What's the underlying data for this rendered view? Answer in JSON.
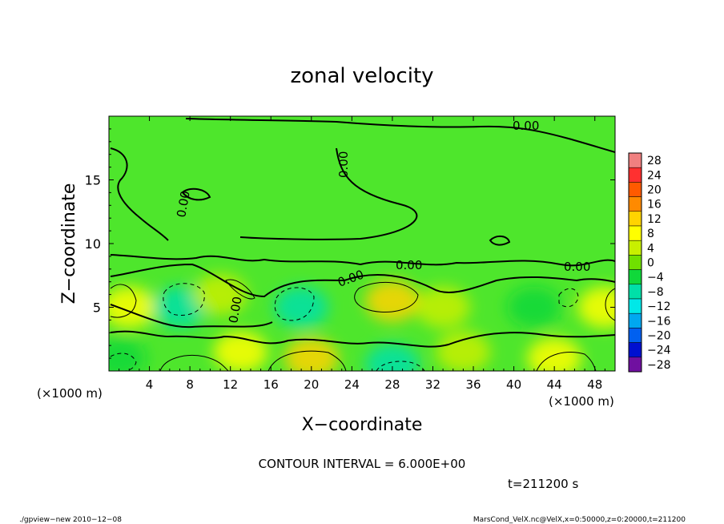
{
  "chart_data": {
    "type": "heatmap",
    "title": "zonal velocity",
    "xlabel": "X−coordinate",
    "ylabel": "Z−coordinate",
    "x_unit_label": "(×1000 m)",
    "y_unit_label": "(×1000 m)",
    "xlim": [
      0,
      50
    ],
    "ylim": [
      0,
      20
    ],
    "x_ticks": [
      4,
      8,
      12,
      16,
      20,
      24,
      28,
      32,
      36,
      40,
      44,
      48
    ],
    "y_ticks": [
      5,
      10,
      15
    ],
    "colorbar": {
      "levels": [
        28,
        24,
        20,
        16,
        12,
        8,
        4,
        0,
        -4,
        -8,
        -12,
        -16,
        -20,
        -24,
        -28
      ],
      "labels": [
        "28",
        "24",
        "20",
        "16",
        "12",
        "8",
        "4",
        "0",
        "−4",
        "−8",
        "−12",
        "−16",
        "−20",
        "−24",
        "−28"
      ],
      "colors": [
        "#f08080",
        "#ff3030",
        "#ff5a00",
        "#ff8a00",
        "#ffd400",
        "#ffff00",
        "#c8f000",
        "#70e000",
        "#10d83a",
        "#00e0a8",
        "#00e8e8",
        "#00a8f0",
        "#0060f0",
        "#0010d0",
        "#7010a0"
      ]
    },
    "contour_labels": [
      "0.00",
      "0.00",
      "0.00",
      "0.00",
      "0.00",
      "0.00",
      "0.00"
    ],
    "annotations": {
      "contour_interval": "CONTOUR INTERVAL = 6.000E+00",
      "time": "t=211200 s",
      "footer_left": "./gpview−new   2010−12−08",
      "footer_right": "MarsCond_VelX.nc@VelX,x=0:50000,z=0:20000,t=211200"
    },
    "grid": false,
    "legend": "right",
    "cells": [
      {
        "x": 2,
        "z": 5,
        "v": 8
      },
      {
        "x": 7,
        "z": 5,
        "v": -8
      },
      {
        "x": 11,
        "z": 6,
        "v": 4
      },
      {
        "x": 13,
        "z": 1.5,
        "v": 8
      },
      {
        "x": 19,
        "z": 5,
        "v": -8
      },
      {
        "x": 20,
        "z": 1,
        "v": 12
      },
      {
        "x": 28,
        "z": 5.5,
        "v": 10
      },
      {
        "x": 28,
        "z": 0.5,
        "v": -8
      },
      {
        "x": 35,
        "z": 1.5,
        "v": 4
      },
      {
        "x": 42,
        "z": 5,
        "v": -4
      },
      {
        "x": 44,
        "z": 1,
        "v": 8
      },
      {
        "x": 49,
        "z": 5,
        "v": 6
      },
      {
        "x": 1,
        "z": 1,
        "v": -6
      },
      {
        "x": 33,
        "z": 5,
        "v": 2
      }
    ]
  }
}
